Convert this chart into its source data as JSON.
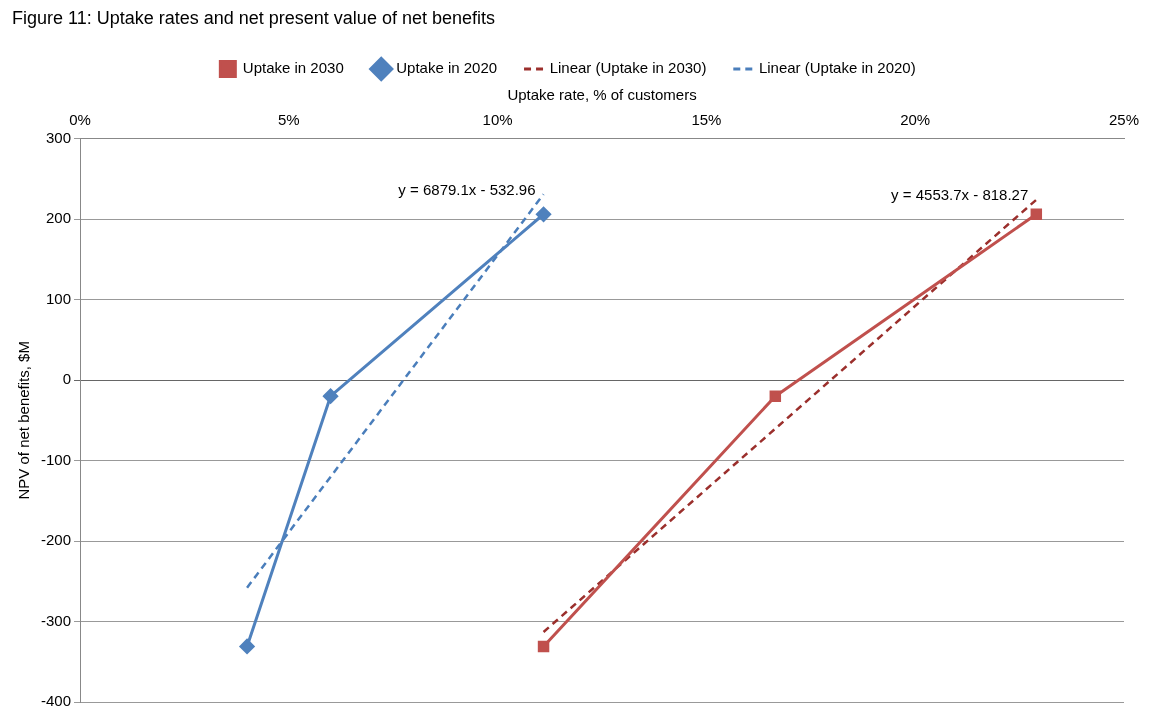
{
  "chart_data": {
    "type": "line",
    "title": "Figure 11: Uptake rates and net present value of net benefits",
    "xlabel": "Uptake rate, % of customers",
    "ylabel": "NPV of net benefits, $M",
    "xlim": [
      0,
      25
    ],
    "xticks": [
      {
        "value": 0,
        "label": "0%"
      },
      {
        "value": 5,
        "label": "5%"
      },
      {
        "value": 10,
        "label": "10%"
      },
      {
        "value": 15,
        "label": "15%"
      },
      {
        "value": 20,
        "label": "20%"
      },
      {
        "value": 25,
        "label": "25%"
      }
    ],
    "ylim": [
      -400,
      300
    ],
    "yticks": [
      -400,
      -300,
      -200,
      -100,
      0,
      100,
      200,
      300
    ],
    "grid": "y",
    "legend": "top",
    "series": [
      {
        "name": "Uptake in 2030",
        "color": "#c0504d",
        "marker": "square",
        "line_style": "solid",
        "x": [
          11.1,
          16.65,
          22.9
        ],
        "values": [
          -331,
          -20,
          206
        ]
      },
      {
        "name": "Uptake in 2020",
        "color": "#4f81bd",
        "marker": "diamond",
        "line_style": "solid",
        "x": [
          4.0,
          6.0,
          11.1
        ],
        "values": [
          -331,
          -20,
          206
        ]
      },
      {
        "name": "Linear (Uptake in 2030)",
        "color": "#9b2f2c",
        "marker": "none",
        "line_style": "dashed",
        "x": [
          11.1,
          22.9
        ],
        "values": [
          -313,
          224
        ]
      },
      {
        "name": "Linear (Uptake in 2020)",
        "color": "#4a7ebb",
        "marker": "none",
        "line_style": "dashed",
        "x": [
          4.0,
          11.1
        ],
        "values": [
          -258,
          231
        ]
      }
    ],
    "annotations": [
      "y = 4553.7x - 818.27",
      "y = 6879.1x - 532.96"
    ]
  }
}
